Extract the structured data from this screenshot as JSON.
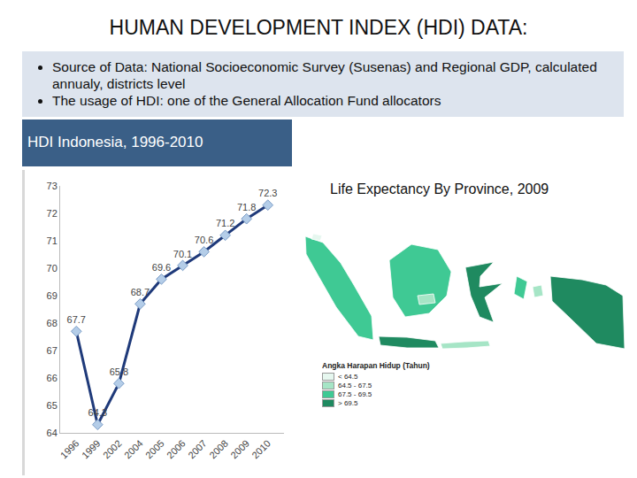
{
  "slide": {
    "heading": "HUMAN DEVELOPMENT INDEX (HDI) DATA:",
    "bullets": [
      "Source of Data: National Socioeconomic Survey (Susenas) and Regional GDP, calculated annualy, districts level",
      "The usage of HDI: one of the General Allocation Fund allocators"
    ],
    "map": {
      "caption": "Life Expectancy By Province, 2009",
      "legend": {
        "title": "Angka Harapan Hidup (Tahun)",
        "items": [
          {
            "label": "< 64.5",
            "color": "#e6f7ef"
          },
          {
            "label": "64.5 - 67.5",
            "color": "#a6e5c6"
          },
          {
            "label": "67.5 - 69.5",
            "color": "#3fc994"
          },
          {
            "label": "> 69.5",
            "color": "#1f8a60"
          }
        ]
      }
    }
  },
  "chart_data": {
    "type": "line",
    "title": "HDI Indonesia, 1996-2010",
    "categories": [
      "1996",
      "1999",
      "2002",
      "2004",
      "2005",
      "2006",
      "2007",
      "2008",
      "2009",
      "2010"
    ],
    "values": [
      67.7,
      64.3,
      65.8,
      68.7,
      69.6,
      70.1,
      70.6,
      71.2,
      71.8,
      72.3
    ],
    "color": "#1f3a7a",
    "marker": "diamond",
    "data_labels": true,
    "grid": false,
    "ylim": [
      64,
      73
    ],
    "yticks": [
      64,
      65,
      66,
      67,
      68,
      69,
      70,
      71,
      72,
      73
    ]
  }
}
